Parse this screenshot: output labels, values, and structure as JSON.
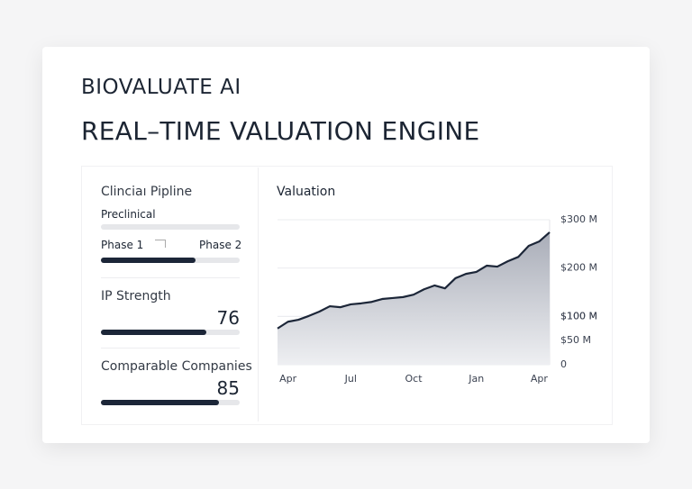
{
  "header": {
    "brand": "BIOVALUATE AI",
    "title": "REAL–TIME VALUATION ENGINE"
  },
  "pipeline": {
    "title": "Clinciaı Pipline",
    "stage": "Preclinical",
    "from": "Phase 1",
    "to": "Phase 2"
  },
  "metrics": [
    {
      "label": "IP Strength",
      "value": 76
    },
    {
      "label": "Comparable Companies",
      "value": 85
    }
  ],
  "chart_data": {
    "type": "line",
    "title": "Valuation",
    "categories": [
      null,
      "Apr",
      null,
      null,
      null,
      null,
      null,
      "Jul",
      null,
      null,
      null,
      null,
      null,
      "Oct",
      null,
      null,
      null,
      null,
      null,
      "Jan",
      null,
      null,
      null,
      null,
      null,
      "Apr",
      null
    ],
    "series": [
      {
        "name": "Valuation",
        "color": "#1c2638",
        "values": [
          75,
          89,
          93,
          101,
          110,
          121,
          119,
          125,
          127,
          130,
          136,
          138,
          140,
          145,
          156,
          164,
          158,
          179,
          188,
          192,
          205,
          203,
          214,
          223,
          246,
          255,
          274
        ]
      }
    ],
    "ylim": [
      0,
      300
    ],
    "yticks": [
      0,
      {
        "value": 50,
        "label": "$50 M"
      },
      {
        "value": 100,
        "label": "$100 M"
      },
      {
        "value": 100,
        "label": "$100 M"
      },
      {
        "value": 200,
        "label": "$200 M"
      },
      {
        "value": 300,
        "label": "$300 M"
      }
    ],
    "grid": true
  }
}
